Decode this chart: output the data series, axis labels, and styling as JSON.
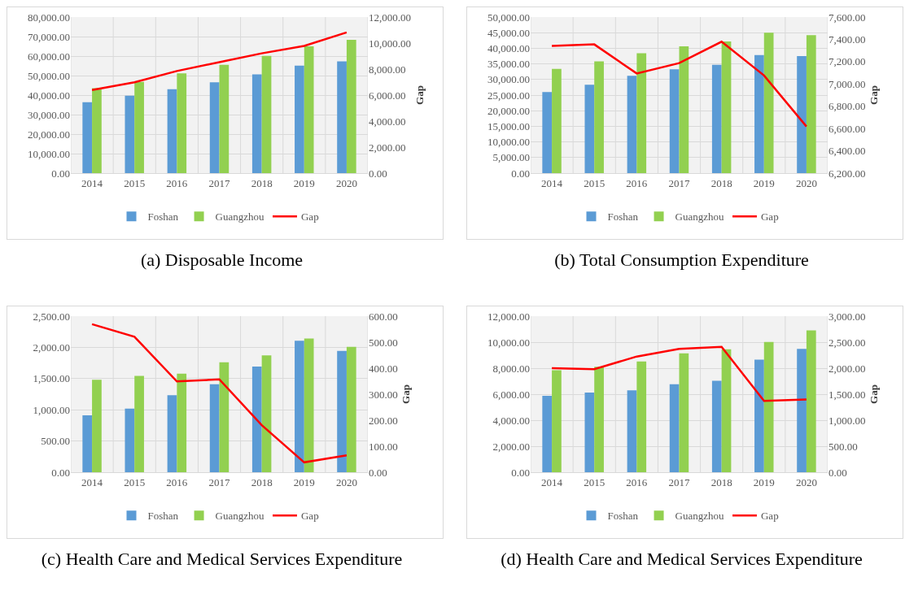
{
  "chart_data": [
    {
      "type": "bar",
      "title": "(a) Disposable Income",
      "categories": [
        "2014",
        "2015",
        "2016",
        "2017",
        "2018",
        "2019",
        "2020"
      ],
      "y2label": "Gap",
      "grid": true,
      "legend": "bottom",
      "marker": "none",
      "line_style": "solid",
      "series": [
        {
          "name": "Foshan",
          "color": "#5b9bd5",
          "values": [
            36400,
            39700,
            43000,
            46600,
            50600,
            55100,
            57300
          ]
        },
        {
          "name": "Guangzhou",
          "color": "#92d050",
          "values": [
            43500,
            46800,
            51100,
            55500,
            60100,
            65000,
            68300
          ]
        },
        {
          "name": "Gap",
          "type": "line",
          "axis": "y2",
          "color": "#ff0000",
          "values": [
            6390,
            6980,
            7850,
            8530,
            9210,
            9780,
            10820
          ]
        }
      ],
      "ylim": [
        0,
        80000
      ],
      "yticks": [
        {
          "value": 0,
          "label": "0.00"
        },
        {
          "value": 10000,
          "label": "10,000.00"
        },
        {
          "value": 20000,
          "label": "20,000.00"
        },
        {
          "value": 30000,
          "label": "30,000.00"
        },
        {
          "value": 40000,
          "label": "40,000.00"
        },
        {
          "value": 50000,
          "label": "50,000.00"
        },
        {
          "value": 60000,
          "label": "60,000.00"
        },
        {
          "value": 70000,
          "label": "70,000.00"
        },
        {
          "value": 80000,
          "label": "80,000.00"
        }
      ],
      "y2lim": [
        0,
        12000
      ],
      "y2ticks": [
        {
          "value": 0,
          "label": "0.00"
        },
        {
          "value": 2000,
          "label": "2,000.00"
        },
        {
          "value": 4000,
          "label": "4,000.00"
        },
        {
          "value": 6000,
          "label": "6,000.00"
        },
        {
          "value": 8000,
          "label": "8,000.00"
        },
        {
          "value": 10000,
          "label": "10,000.00"
        },
        {
          "value": 12000,
          "label": "12,000.00"
        }
      ]
    },
    {
      "type": "bar",
      "title": "(b) Total Consumption Expenditure",
      "categories": [
        "2014",
        "2015",
        "2016",
        "2017",
        "2018",
        "2019",
        "2020"
      ],
      "y2label": "Gap",
      "grid": true,
      "legend": "bottom",
      "marker": "none",
      "line_style": "solid",
      "series": [
        {
          "name": "Foshan",
          "color": "#5b9bd5",
          "values": [
            26000,
            28300,
            31200,
            33300,
            34700,
            37800,
            37500
          ]
        },
        {
          "name": "Guangzhou",
          "color": "#92d050",
          "values": [
            33400,
            35800,
            38400,
            40600,
            42200,
            45000,
            44200
          ]
        },
        {
          "name": "Gap",
          "type": "line",
          "axis": "y2",
          "color": "#ff0000",
          "values": [
            7342,
            7355,
            7094,
            7187,
            7379,
            7076,
            6618
          ]
        }
      ],
      "ylim": [
        0,
        50000
      ],
      "yticks": [
        {
          "value": 0,
          "label": "0.00"
        },
        {
          "value": 5000,
          "label": "5,000.00"
        },
        {
          "value": 10000,
          "label": "10,000.00"
        },
        {
          "value": 15000,
          "label": "15,000.00"
        },
        {
          "value": 20000,
          "label": "20,000.00"
        },
        {
          "value": 25000,
          "label": "25,000.00"
        },
        {
          "value": 30000,
          "label": "30,000.00"
        },
        {
          "value": 35000,
          "label": "35,000.00"
        },
        {
          "value": 40000,
          "label": "40,000.00"
        },
        {
          "value": 45000,
          "label": "45,000.00"
        },
        {
          "value": 50000,
          "label": "50,000.00"
        }
      ],
      "y2lim": [
        6200,
        7600
      ],
      "y2ticks": [
        {
          "value": 6200,
          "label": "6,200.00"
        },
        {
          "value": 6400,
          "label": "6,400.00"
        },
        {
          "value": 6600,
          "label": "6,600.00"
        },
        {
          "value": 6800,
          "label": "6,800.00"
        },
        {
          "value": 7000,
          "label": "7,000.00"
        },
        {
          "value": 7200,
          "label": "7,200.00"
        },
        {
          "value": 7400,
          "label": "7,400.00"
        },
        {
          "value": 7600,
          "label": "7,600.00"
        }
      ]
    },
    {
      "type": "bar",
      "title": "(c) Health Care and Medical Services Expenditure",
      "categories": [
        "2014",
        "2015",
        "2016",
        "2017",
        "2018",
        "2019",
        "2020"
      ],
      "y2label": "Gap",
      "grid": true,
      "legend": "bottom",
      "marker": "none",
      "line_style": "solid",
      "series": [
        {
          "name": "Foshan",
          "color": "#5b9bd5",
          "values": [
            913,
            1020,
            1234,
            1409,
            1694,
            2107,
            1944
          ]
        },
        {
          "name": "Guangzhou",
          "color": "#92d050",
          "values": [
            1480,
            1544,
            1579,
            1762,
            1873,
            2143,
            2008
          ]
        },
        {
          "name": "Gap",
          "type": "line",
          "axis": "y2",
          "color": "#ff0000",
          "values": [
            569,
            521,
            349,
            357,
            181,
            38,
            65
          ]
        }
      ],
      "ylim": [
        0,
        2500
      ],
      "yticks": [
        {
          "value": 0,
          "label": "0.00"
        },
        {
          "value": 500,
          "label": "500.00"
        },
        {
          "value": 1000,
          "label": "1,000.00"
        },
        {
          "value": 1500,
          "label": "1,500.00"
        },
        {
          "value": 2000,
          "label": "2,000.00"
        },
        {
          "value": 2500,
          "label": "2,500.00"
        }
      ],
      "y2lim": [
        0,
        600
      ],
      "y2ticks": [
        {
          "value": 0,
          "label": "0.00"
        },
        {
          "value": 100,
          "label": "100.00"
        },
        {
          "value": 200,
          "label": "200.00"
        },
        {
          "value": 300,
          "label": "300.00"
        },
        {
          "value": 400,
          "label": "400.00"
        },
        {
          "value": 500,
          "label": "500.00"
        },
        {
          "value": 600,
          "label": "600.00"
        }
      ]
    },
    {
      "type": "bar",
      "title": "(d) Health Care and Medical Services Expenditure",
      "categories": [
        "2014",
        "2015",
        "2016",
        "2017",
        "2018",
        "2019",
        "2020"
      ],
      "y2label": "Gap",
      "grid": true,
      "legend": "bottom",
      "marker": "none",
      "line_style": "solid",
      "series": [
        {
          "name": "Foshan",
          "color": "#5b9bd5",
          "values": [
            5870,
            6130,
            6300,
            6760,
            7030,
            8650,
            9490
          ]
        },
        {
          "name": "Guangzhou",
          "color": "#92d050",
          "values": [
            7850,
            8110,
            8510,
            9140,
            9450,
            10020,
            10910
          ]
        },
        {
          "name": "Gap",
          "type": "line",
          "axis": "y2",
          "color": "#ff0000",
          "values": [
            2000,
            1981,
            2224,
            2371,
            2410,
            1371,
            1400
          ]
        }
      ],
      "ylim": [
        0,
        12000
      ],
      "yticks": [
        {
          "value": 0,
          "label": "0.00"
        },
        {
          "value": 2000,
          "label": "2,000.00"
        },
        {
          "value": 4000,
          "label": "4,000.00"
        },
        {
          "value": 6000,
          "label": "6,000.00"
        },
        {
          "value": 8000,
          "label": "8,000.00"
        },
        {
          "value": 10000,
          "label": "10,000.00"
        },
        {
          "value": 12000,
          "label": "12,000.00"
        }
      ],
      "y2lim": [
        0,
        3000
      ],
      "y2ticks": [
        {
          "value": 0,
          "label": "0.00"
        },
        {
          "value": 500,
          "label": "500.00"
        },
        {
          "value": 1000,
          "label": "1,000.00"
        },
        {
          "value": 1500,
          "label": "1,500.00"
        },
        {
          "value": 2000,
          "label": "2,000.00"
        },
        {
          "value": 2500,
          "label": "2,500.00"
        },
        {
          "value": 3000,
          "label": "3,000.00"
        }
      ]
    }
  ]
}
